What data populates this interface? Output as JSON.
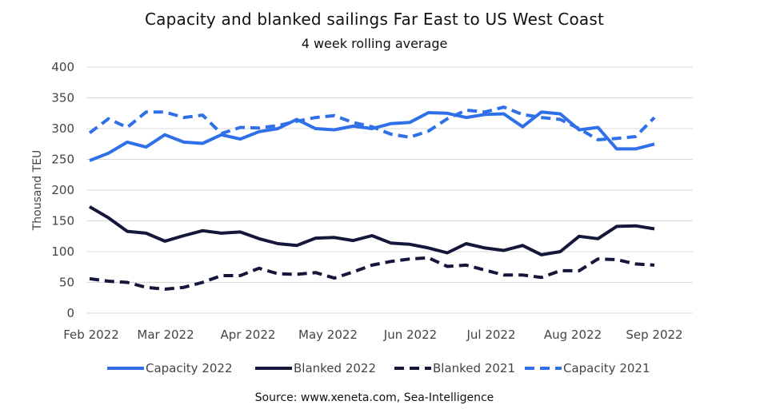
{
  "chart_data": {
    "type": "line",
    "title": "Capacity and blanked sailings Far East to US West Coast",
    "subtitle": "4 week rolling average",
    "xlabel": "",
    "ylabel": "Thousand TEU",
    "ylim": [
      0,
      400
    ],
    "yticks": [
      0,
      50,
      100,
      150,
      200,
      250,
      300,
      350,
      400
    ],
    "xticks": [
      "Feb 2022",
      "Mar 2022",
      "Apr 2022",
      "May 2022",
      "Jun 2022",
      "Jul 2022",
      "Aug 2022",
      "Sep 2022"
    ],
    "grid": true,
    "legend_position": "bottom",
    "source": "Source: www.xeneta.com, Sea-Intelligence",
    "series": [
      {
        "name": "Capacity 2022",
        "color": "#2f6fe8",
        "dash": "solid",
        "values": [
          248,
          260,
          278,
          270,
          290,
          278,
          276,
          290,
          283,
          295,
          300,
          315,
          300,
          298,
          304,
          300,
          308,
          310,
          326,
          325,
          318,
          323,
          324,
          303,
          327,
          324,
          298,
          302,
          267,
          267,
          275
        ]
      },
      {
        "name": "Blanked 2022",
        "color": "#14163a",
        "dash": "solid",
        "values": [
          173,
          155,
          133,
          130,
          117,
          126,
          134,
          130,
          132,
          121,
          113,
          110,
          122,
          123,
          118,
          126,
          114,
          112,
          106,
          98,
          113,
          106,
          102,
          110,
          95,
          100,
          125,
          121,
          141,
          142,
          137
        ]
      },
      {
        "name": "Blanked 2021",
        "color": "#14163a",
        "dash": "dashed",
        "values": [
          56,
          52,
          50,
          42,
          39,
          42,
          50,
          61,
          61,
          73,
          64,
          63,
          66,
          57,
          67,
          78,
          84,
          88,
          90,
          76,
          78,
          70,
          62,
          62,
          58,
          69,
          69,
          88,
          87,
          80,
          78
        ]
      },
      {
        "name": "Capacity 2021",
        "color": "#2f6fe8",
        "dash": "dashed",
        "values": [
          293,
          316,
          302,
          327,
          327,
          318,
          322,
          292,
          302,
          301,
          305,
          312,
          318,
          321,
          310,
          303,
          291,
          286,
          296,
          316,
          330,
          327,
          335,
          323,
          318,
          315,
          300,
          282,
          284,
          287,
          318
        ]
      }
    ]
  }
}
